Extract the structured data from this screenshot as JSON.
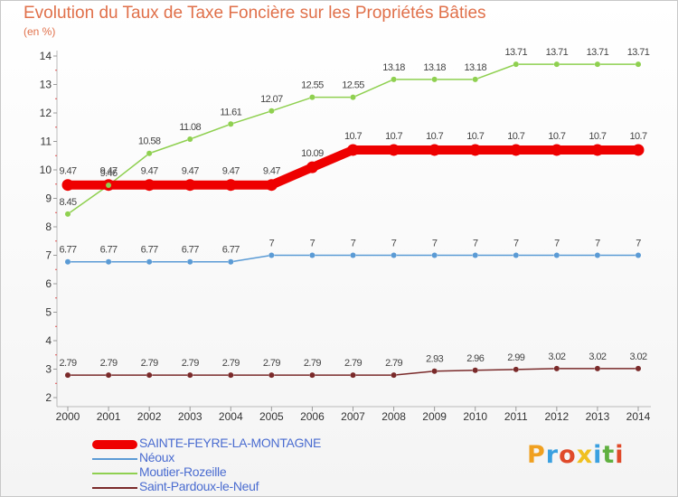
{
  "chart_data": {
    "type": "line",
    "title": "Evolution du Taux de Taxe Foncière sur les Propriétés Bâties",
    "ylabel": "(en %)",
    "xlabel": "",
    "ylim": [
      2,
      14
    ],
    "yticks": [
      "2",
      "3",
      "4",
      "5",
      "6",
      "7",
      "8",
      "9",
      "10",
      "11",
      "12",
      "13",
      "14"
    ],
    "categories": [
      "2000",
      "2001",
      "2002",
      "2003",
      "2004",
      "2005",
      "2006",
      "2007",
      "2008",
      "2009",
      "2010",
      "2011",
      "2012",
      "2013",
      "2014"
    ],
    "series": [
      {
        "name": "SAINTE-FEYRE-LA-MONTAGNE",
        "color": "#ee0000",
        "highlight": true,
        "values": [
          9.47,
          9.47,
          9.47,
          9.47,
          9.47,
          9.47,
          10.09,
          10.7,
          10.7,
          10.7,
          10.7,
          10.7,
          10.7,
          10.7,
          10.7
        ],
        "labels": [
          "9.47",
          "9.47",
          "9.47",
          "9.47",
          "9.47",
          "9.47",
          "10.09",
          "10.7",
          "10.7",
          "10.7",
          "10.7",
          "10.7",
          "10.7",
          "10.7",
          "10.7"
        ]
      },
      {
        "name": "Néoux",
        "color": "#5b9bd5",
        "values": [
          6.77,
          6.77,
          6.77,
          6.77,
          6.77,
          7,
          7,
          7,
          7,
          7,
          7,
          7,
          7,
          7,
          7
        ],
        "labels": [
          "6.77",
          "6.77",
          "6.77",
          "6.77",
          "6.77",
          "7",
          "7",
          "7",
          "7",
          "7",
          "7",
          "7",
          "7",
          "7",
          "7"
        ]
      },
      {
        "name": "Moutier-Rozeille",
        "color": "#8fd050",
        "values": [
          8.45,
          9.46,
          10.58,
          11.08,
          11.61,
          12.07,
          12.55,
          12.55,
          13.18,
          13.18,
          13.18,
          13.71,
          13.71,
          13.71,
          13.71
        ],
        "labels": [
          "8.45",
          "9.46",
          "10.58",
          "11.08",
          "11.61",
          "12.07",
          "12.55",
          "12.55",
          "13.18",
          "13.18",
          "13.18",
          "13.71",
          "13.71",
          "13.71",
          "13.71"
        ]
      },
      {
        "name": "Saint-Pardoux-le-Neuf",
        "color": "#7a2a2a",
        "values": [
          2.79,
          2.79,
          2.79,
          2.79,
          2.79,
          2.79,
          2.79,
          2.79,
          2.79,
          2.93,
          2.96,
          2.99,
          3.02,
          3.02,
          3.02
        ],
        "labels": [
          "2.79",
          "2.79",
          "2.79",
          "2.79",
          "2.79",
          "2.79",
          "2.79",
          "2.79",
          "2.79",
          "2.93",
          "2.96",
          "2.99",
          "3.02",
          "3.02",
          "3.02"
        ]
      }
    ],
    "legend_position": "bottom-left"
  },
  "brand": {
    "letters": [
      "P",
      "r",
      "o",
      "x",
      "i",
      "t",
      "i"
    ],
    "colors": [
      "#f0a020",
      "#3aa0e0",
      "#e04a2a",
      "#f0c020",
      "#3aa0e0",
      "#60b040",
      "#e04a2a"
    ]
  }
}
